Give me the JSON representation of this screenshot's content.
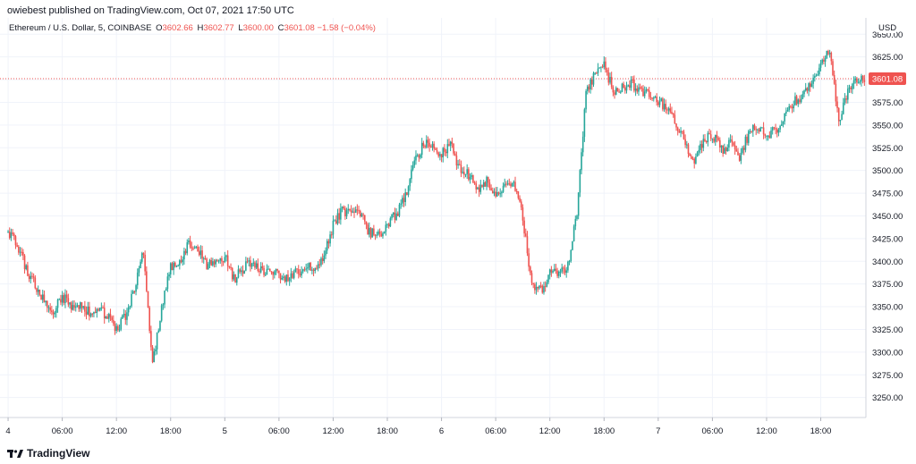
{
  "header": {
    "published": "owiebest published on TradingView.com, Oct 07, 2021 17:50 UTC"
  },
  "legend": {
    "symbol": "Ethereum / U.S. Dollar, 5, COINBASE",
    "o_label": "O",
    "o": "3602.66",
    "h_label": "H",
    "h": "3602.77",
    "l_label": "L",
    "l": "3600.00",
    "c_label": "C",
    "c": "3601.08",
    "change": "−1.58 (−0.04%)"
  },
  "axis": {
    "currency": "USD",
    "last_price_label": "3601.08"
  },
  "brand": {
    "name": "TradingView"
  },
  "colors": {
    "up": "#26a69a",
    "down": "#ef5350",
    "grid": "#f0f3fa",
    "text": "#131722"
  },
  "chart_data": {
    "type": "candlestick",
    "title": "Ethereum / U.S. Dollar, 5, COINBASE",
    "ylim": [
      3228,
      3668
    ],
    "yticks": [
      3250,
      3275,
      3300,
      3325,
      3350,
      3375,
      3400,
      3425,
      3450,
      3475,
      3500,
      3525,
      3550,
      3575,
      3600,
      3625,
      3650
    ],
    "ytick_labels": [
      "3250.00",
      "3275.00",
      "3300.00",
      "3325.00",
      "3350.00",
      "3375.00",
      "3400.00",
      "3425.00",
      "3450.00",
      "3475.00",
      "3500.00",
      "3525.00",
      "3550.00",
      "3575.00",
      "3600.00",
      "3625.00",
      "3650.00"
    ],
    "x_range": [
      -0.5,
      95.0
    ],
    "xticks": [
      {
        "pos": 0,
        "label": "4"
      },
      {
        "pos": 6,
        "label": "06:00"
      },
      {
        "pos": 12,
        "label": "12:00"
      },
      {
        "pos": 18,
        "label": "18:00"
      },
      {
        "pos": 24,
        "label": "5"
      },
      {
        "pos": 30,
        "label": "06:00"
      },
      {
        "pos": 36,
        "label": "12:00"
      },
      {
        "pos": 42,
        "label": "18:00"
      },
      {
        "pos": 48,
        "label": "6"
      },
      {
        "pos": 54,
        "label": "06:00"
      },
      {
        "pos": 60,
        "label": "12:00"
      },
      {
        "pos": 66,
        "label": "18:00"
      },
      {
        "pos": 72,
        "label": "7"
      },
      {
        "pos": 78,
        "label": "06:00"
      },
      {
        "pos": 84,
        "label": "12:00"
      },
      {
        "pos": 90,
        "label": "18:00"
      }
    ],
    "close_series": [
      3432,
      3418,
      3392,
      3374,
      3358,
      3342,
      3362,
      3348,
      3352,
      3344,
      3346,
      3340,
      3324,
      3340,
      3368,
      3410,
      3288,
      3348,
      3392,
      3402,
      3420,
      3414,
      3395,
      3398,
      3405,
      3380,
      3392,
      3398,
      3392,
      3388,
      3385,
      3380,
      3388,
      3392,
      3394,
      3408,
      3440,
      3455,
      3452,
      3452,
      3432,
      3428,
      3440,
      3452,
      3472,
      3508,
      3530,
      3528,
      3518,
      3528,
      3502,
      3495,
      3480,
      3488,
      3470,
      3482,
      3490,
      3448,
      3375,
      3368,
      3385,
      3388,
      3395,
      3455,
      3585,
      3608,
      3616,
      3588,
      3592,
      3596,
      3588,
      3586,
      3576,
      3570,
      3552,
      3530,
      3512,
      3532,
      3540,
      3522,
      3530,
      3516,
      3540,
      3550,
      3535,
      3545,
      3560,
      3575,
      3580,
      3600,
      3615,
      3635,
      3550,
      3590,
      3598,
      3601.08
    ],
    "last_price": 3601.08
  }
}
